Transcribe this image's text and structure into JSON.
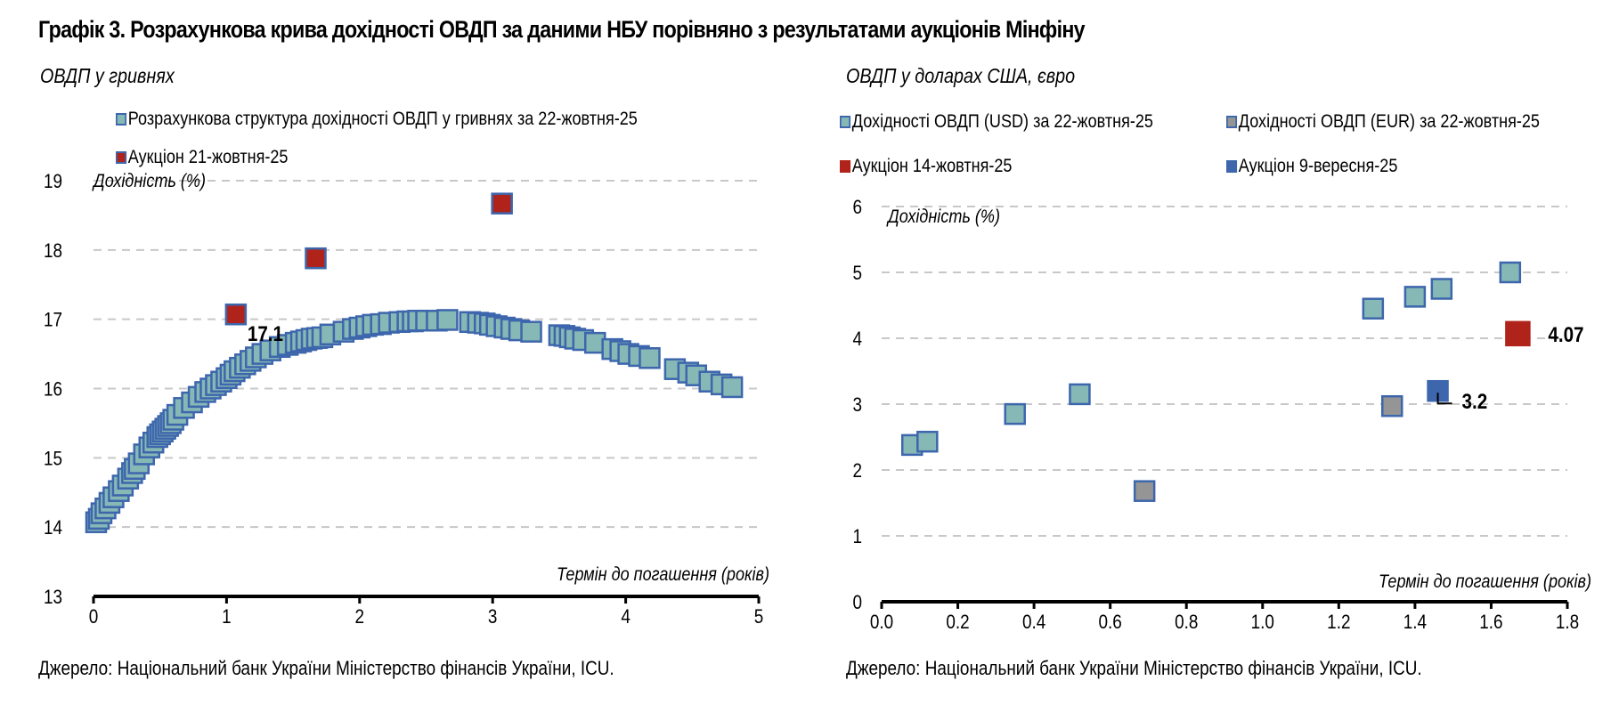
{
  "title": "Графік 3. Розрахункова крива дохідності ОВДП за даними НБУ порівняно з результатами аукціонів Мінфіну",
  "colors": {
    "curve_fill": "#86b8b5",
    "marker_border": "#3d66ad",
    "auction_red": "#b0231b",
    "eur_gray": "#959595",
    "auction_blue": "#3d66ad",
    "grid": "#c8c8c8"
  },
  "chart_data": [
    {
      "type": "scatter",
      "subtitle": "ОВДП у гривнях",
      "ylabel": "Дохідність (%)",
      "xlabel": "Термін до погашення (років)",
      "xlim": [
        0,
        5
      ],
      "ylim": [
        13,
        19
      ],
      "xticks": [
        "0",
        "1",
        "2",
        "3",
        "4",
        "5"
      ],
      "yticks": [
        "13",
        "14",
        "15",
        "16",
        "17",
        "18",
        "19"
      ],
      "grid": true,
      "legend_position": "top-left",
      "series": [
        {
          "name": "Розрахункова структура дохідності ОВДП у гривнях за 22-жовтня-25",
          "color_key": "curve_fill",
          "x": [
            0.02,
            0.04,
            0.06,
            0.09,
            0.12,
            0.15,
            0.19,
            0.22,
            0.26,
            0.29,
            0.31,
            0.34,
            0.38,
            0.42,
            0.45,
            0.48,
            0.5,
            0.52,
            0.54,
            0.56,
            0.58,
            0.6,
            0.63,
            0.68,
            0.74,
            0.79,
            0.84,
            0.88,
            0.92,
            0.96,
            1.0,
            1.03,
            1.06,
            1.1,
            1.14,
            1.18,
            1.22,
            1.27,
            1.33,
            1.4,
            1.46,
            1.52,
            1.56,
            1.6,
            1.64,
            1.68,
            1.72,
            1.78,
            1.88,
            1.95,
            2.0,
            2.05,
            2.1,
            2.16,
            2.22,
            2.3,
            2.36,
            2.4,
            2.44,
            2.5,
            2.58,
            2.66,
            2.83,
            2.89,
            2.94,
            2.98,
            3.03,
            3.09,
            3.14,
            3.2,
            3.29,
            3.5,
            3.54,
            3.58,
            3.62,
            3.68,
            3.77,
            3.9,
            3.96,
            4.02,
            4.1,
            4.18,
            4.37,
            4.47,
            4.53,
            4.63,
            4.72,
            4.8
          ],
          "y": [
            14.07,
            14.12,
            14.2,
            14.27,
            14.35,
            14.43,
            14.52,
            14.6,
            14.7,
            14.78,
            14.84,
            14.92,
            15.05,
            15.15,
            15.22,
            15.3,
            15.34,
            15.38,
            15.42,
            15.46,
            15.5,
            15.55,
            15.62,
            15.72,
            15.8,
            15.88,
            15.95,
            16.0,
            16.05,
            16.1,
            16.15,
            16.2,
            16.25,
            16.3,
            16.35,
            16.4,
            16.45,
            16.5,
            16.55,
            16.6,
            16.63,
            16.66,
            16.68,
            16.7,
            16.72,
            16.73,
            16.74,
            16.78,
            16.82,
            16.86,
            16.88,
            16.9,
            16.92,
            16.93,
            16.95,
            16.96,
            16.97,
            16.97,
            16.98,
            16.98,
            16.98,
            16.99,
            16.96,
            16.95,
            16.94,
            16.92,
            16.9,
            16.88,
            16.86,
            16.84,
            16.82,
            16.77,
            16.76,
            16.74,
            16.72,
            16.7,
            16.66,
            16.57,
            16.54,
            16.5,
            16.47,
            16.44,
            16.28,
            16.23,
            16.19,
            16.1,
            16.06,
            16.02
          ]
        },
        {
          "name": "Аукціон 21-жовтня-25",
          "color_key": "auction_red",
          "x": [
            1.07,
            1.67,
            3.07
          ],
          "y": [
            17.07,
            17.88,
            18.67
          ]
        }
      ],
      "annotations": [
        {
          "text": "17.1",
          "x": 1.07,
          "y": 17.07
        }
      ]
    },
    {
      "type": "scatter",
      "subtitle": "ОВДП у доларах США, євро",
      "ylabel": "Дохідність (%)",
      "xlabel": "Термін до погашення (років)",
      "xlim": [
        0,
        1.8
      ],
      "ylim": [
        0,
        6
      ],
      "xticks": [
        "0.0",
        "0.2",
        "0.4",
        "0.6",
        "0.8",
        "1.0",
        "1.2",
        "1.4",
        "1.6",
        "1.8"
      ],
      "yticks": [
        "0",
        "1",
        "2",
        "3",
        "4",
        "5",
        "6"
      ],
      "grid": true,
      "legend_position": "top",
      "series": [
        {
          "name": "Дохідності ОВДП (USD) за 22-жовтня-25",
          "color_key": "curve_fill",
          "x": [
            0.08,
            0.12,
            0.35,
            0.52,
            1.29,
            1.4,
            1.47,
            1.65
          ],
          "y": [
            2.38,
            2.43,
            2.85,
            3.15,
            4.45,
            4.63,
            4.75,
            5.0
          ]
        },
        {
          "name": "Дохідності ОВДП (EUR) за 22-жовтня-25",
          "color_key": "eur_gray",
          "x": [
            0.69,
            1.34
          ],
          "y": [
            1.68,
            2.97
          ]
        },
        {
          "name": "Аукціон 14-жовтня-25",
          "color_key": "auction_red",
          "x": [
            1.67
          ],
          "y": [
            4.07
          ]
        },
        {
          "name": "Аукціон 9-вересня-25",
          "color_key": "auction_blue",
          "x": [
            1.46
          ],
          "y": [
            3.2
          ]
        }
      ],
      "annotations": [
        {
          "text": "4.07",
          "x": 1.67,
          "y": 4.07
        },
        {
          "text": "3.2",
          "x": 1.46,
          "y": 3.2
        }
      ]
    }
  ],
  "source": "Джерело: Національний банк України Міністерство фінансів України, ICU."
}
